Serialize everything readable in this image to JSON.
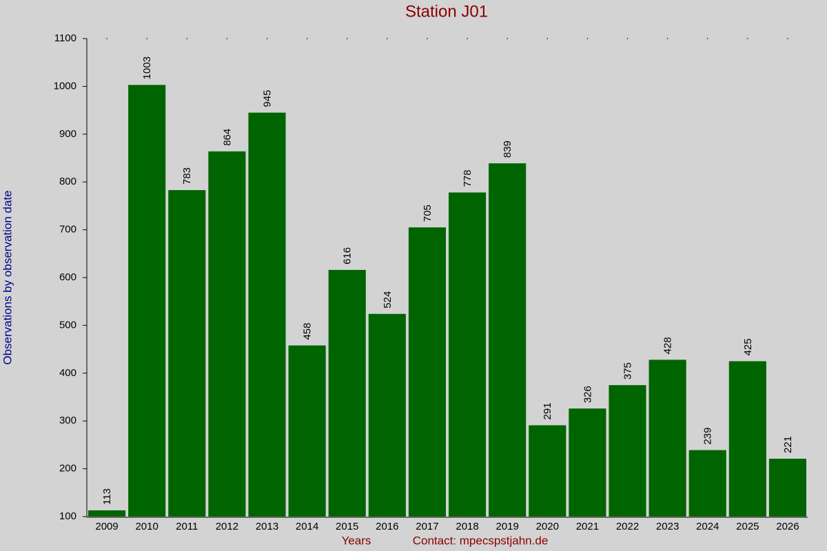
{
  "chart_data": {
    "type": "bar",
    "title": "Station J01",
    "x_label": "Years",
    "annotation": "Contact: mpecspstjahn.de",
    "y_label": "Observations by observation date",
    "categories": [
      "2009",
      "2010",
      "2011",
      "2012",
      "2013",
      "2014",
      "2015",
      "2016",
      "2017",
      "2018",
      "2019",
      "2020",
      "2021",
      "2022",
      "2023",
      "2024",
      "2025",
      "2026"
    ],
    "values": [
      113,
      1003,
      783,
      864,
      945,
      458,
      616,
      524,
      705,
      778,
      839,
      291,
      326,
      375,
      428,
      239,
      425,
      221
    ],
    "color": "#006400",
    "ylim": [
      100,
      1100
    ],
    "yticks": [
      100,
      200,
      300,
      400,
      500,
      600,
      700,
      800,
      900,
      1000,
      1100
    ]
  }
}
